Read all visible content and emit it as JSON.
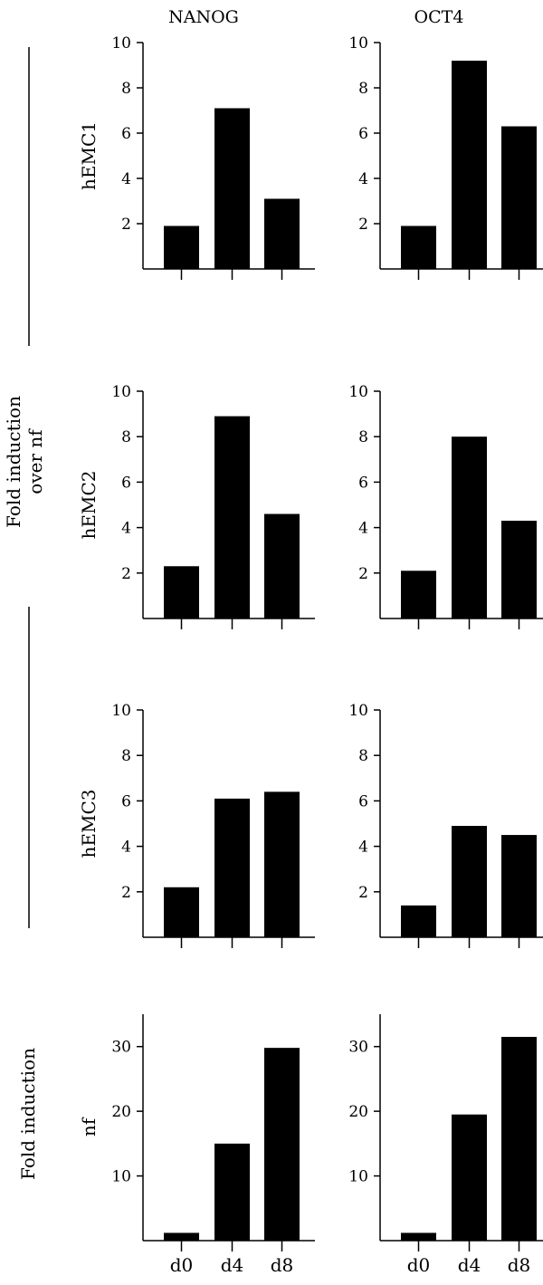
{
  "columns": [
    "NANOG",
    "OCT4"
  ],
  "side_labels": {
    "top_group": [
      "Fold induction",
      "over nf"
    ],
    "bottom_group": "Fold induction"
  },
  "colors": {
    "bar": "#000000",
    "axis": "#000000"
  },
  "chart_data": [
    {
      "type": "bar",
      "row": "hEMC1",
      "column": "NANOG",
      "categories": [
        "d0",
        "d4",
        "d8"
      ],
      "values": [
        1.9,
        7.1,
        3.1
      ],
      "ylabel": "hEMC1",
      "ylim": [
        0,
        10
      ],
      "yticks": [
        2,
        4,
        6,
        8,
        10
      ],
      "show_xticklabels": false
    },
    {
      "type": "bar",
      "row": "hEMC1",
      "column": "OCT4",
      "categories": [
        "d0",
        "d4",
        "d8"
      ],
      "values": [
        1.9,
        9.2,
        6.3
      ],
      "ylabel": "",
      "ylim": [
        0,
        10
      ],
      "yticks": [
        2,
        4,
        6,
        8,
        10
      ],
      "show_xticklabels": false
    },
    {
      "type": "bar",
      "row": "hEMC2",
      "column": "NANOG",
      "categories": [
        "d0",
        "d4",
        "d8"
      ],
      "values": [
        2.3,
        8.9,
        4.6
      ],
      "ylabel": "hEMC2",
      "ylim": [
        0,
        10
      ],
      "yticks": [
        2,
        4,
        6,
        8,
        10
      ],
      "show_xticklabels": false
    },
    {
      "type": "bar",
      "row": "hEMC2",
      "column": "OCT4",
      "categories": [
        "d0",
        "d4",
        "d8"
      ],
      "values": [
        2.1,
        8.0,
        4.3
      ],
      "ylabel": "",
      "ylim": [
        0,
        10
      ],
      "yticks": [
        2,
        4,
        6,
        8,
        10
      ],
      "show_xticklabels": false
    },
    {
      "type": "bar",
      "row": "hEMC3",
      "column": "NANOG",
      "categories": [
        "d0",
        "d4",
        "d8"
      ],
      "values": [
        2.2,
        6.1,
        6.4
      ],
      "ylabel": "hEMC3",
      "ylim": [
        0,
        10
      ],
      "yticks": [
        2,
        4,
        6,
        8,
        10
      ],
      "show_xticklabels": false
    },
    {
      "type": "bar",
      "row": "hEMC3",
      "column": "OCT4",
      "categories": [
        "d0",
        "d4",
        "d8"
      ],
      "values": [
        1.4,
        4.9,
        4.5
      ],
      "ylabel": "",
      "ylim": [
        0,
        10
      ],
      "yticks": [
        2,
        4,
        6,
        8,
        10
      ],
      "show_xticklabels": false
    },
    {
      "type": "bar",
      "row": "nf",
      "column": "NANOG",
      "categories": [
        "d0",
        "d4",
        "d8"
      ],
      "values": [
        1.2,
        15.0,
        29.8
      ],
      "ylabel": "nf",
      "ylim": [
        0,
        35
      ],
      "yticks": [
        10,
        20,
        30
      ],
      "show_xticklabels": true
    },
    {
      "type": "bar",
      "row": "nf",
      "column": "OCT4",
      "categories": [
        "d0",
        "d4",
        "d8"
      ],
      "values": [
        1.2,
        19.5,
        31.5
      ],
      "ylabel": "",
      "ylim": [
        0,
        35
      ],
      "yticks": [
        10,
        20,
        30
      ],
      "show_xticklabels": true
    }
  ]
}
